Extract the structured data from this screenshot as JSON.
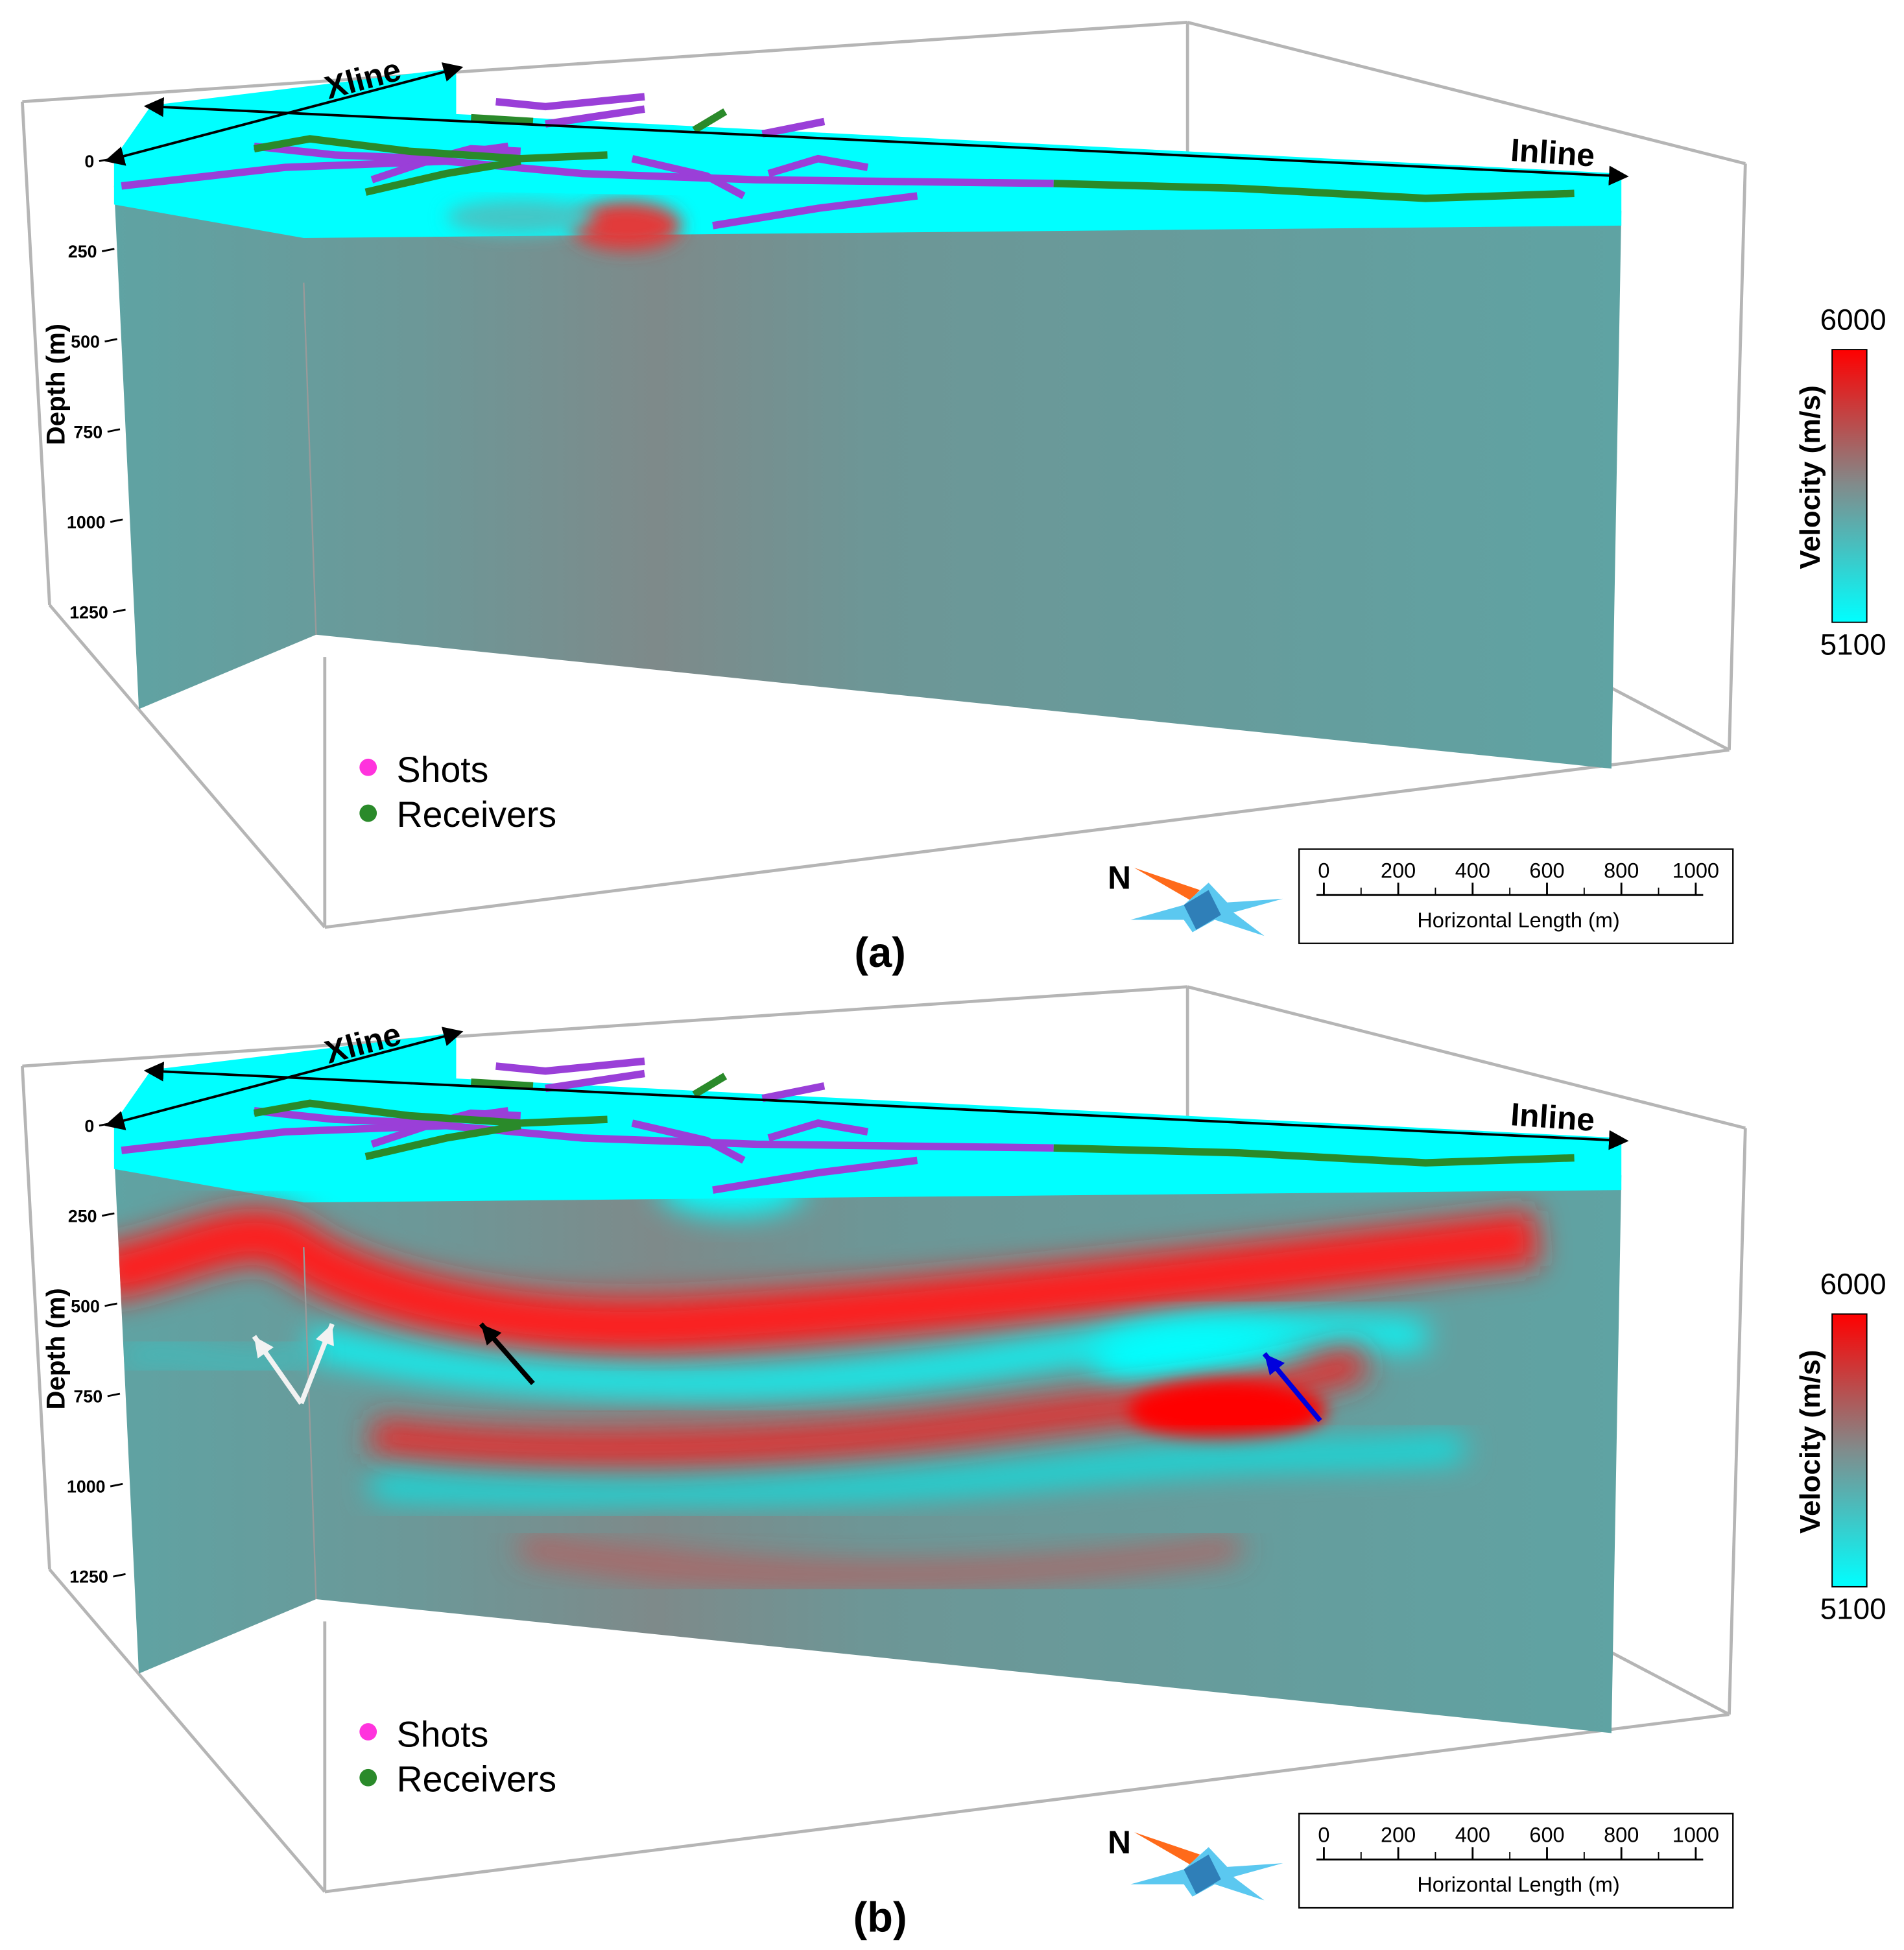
{
  "panels": [
    {
      "label": "(a)",
      "xline": "Xline",
      "inline": "Inline",
      "depth_title": "Depth (m)",
      "depth_ticks": [
        0,
        250,
        500,
        750,
        1000,
        1250
      ],
      "colorbar": {
        "title": "Velocity (m/s)",
        "max": 6000,
        "min": 5100
      },
      "legend": [
        "Shots",
        "Receivers"
      ],
      "north": "N",
      "scale_bar": {
        "title": "Horizontal Length (m)",
        "ticks": [
          0,
          200,
          400,
          600,
          800,
          1000
        ]
      }
    },
    {
      "label": "(b)",
      "xline": "Xline",
      "inline": "Inline",
      "depth_title": "Depth (m)",
      "depth_ticks": [
        0,
        250,
        500,
        750,
        1000,
        1250
      ],
      "colorbar": {
        "title": "Velocity (m/s)",
        "max": 6000,
        "min": 5100
      },
      "legend": [
        "Shots",
        "Receivers"
      ],
      "north": "N",
      "scale_bar": {
        "title": "Horizontal Length (m)",
        "ticks": [
          0,
          200,
          400,
          600,
          800,
          1000
        ]
      }
    }
  ]
}
